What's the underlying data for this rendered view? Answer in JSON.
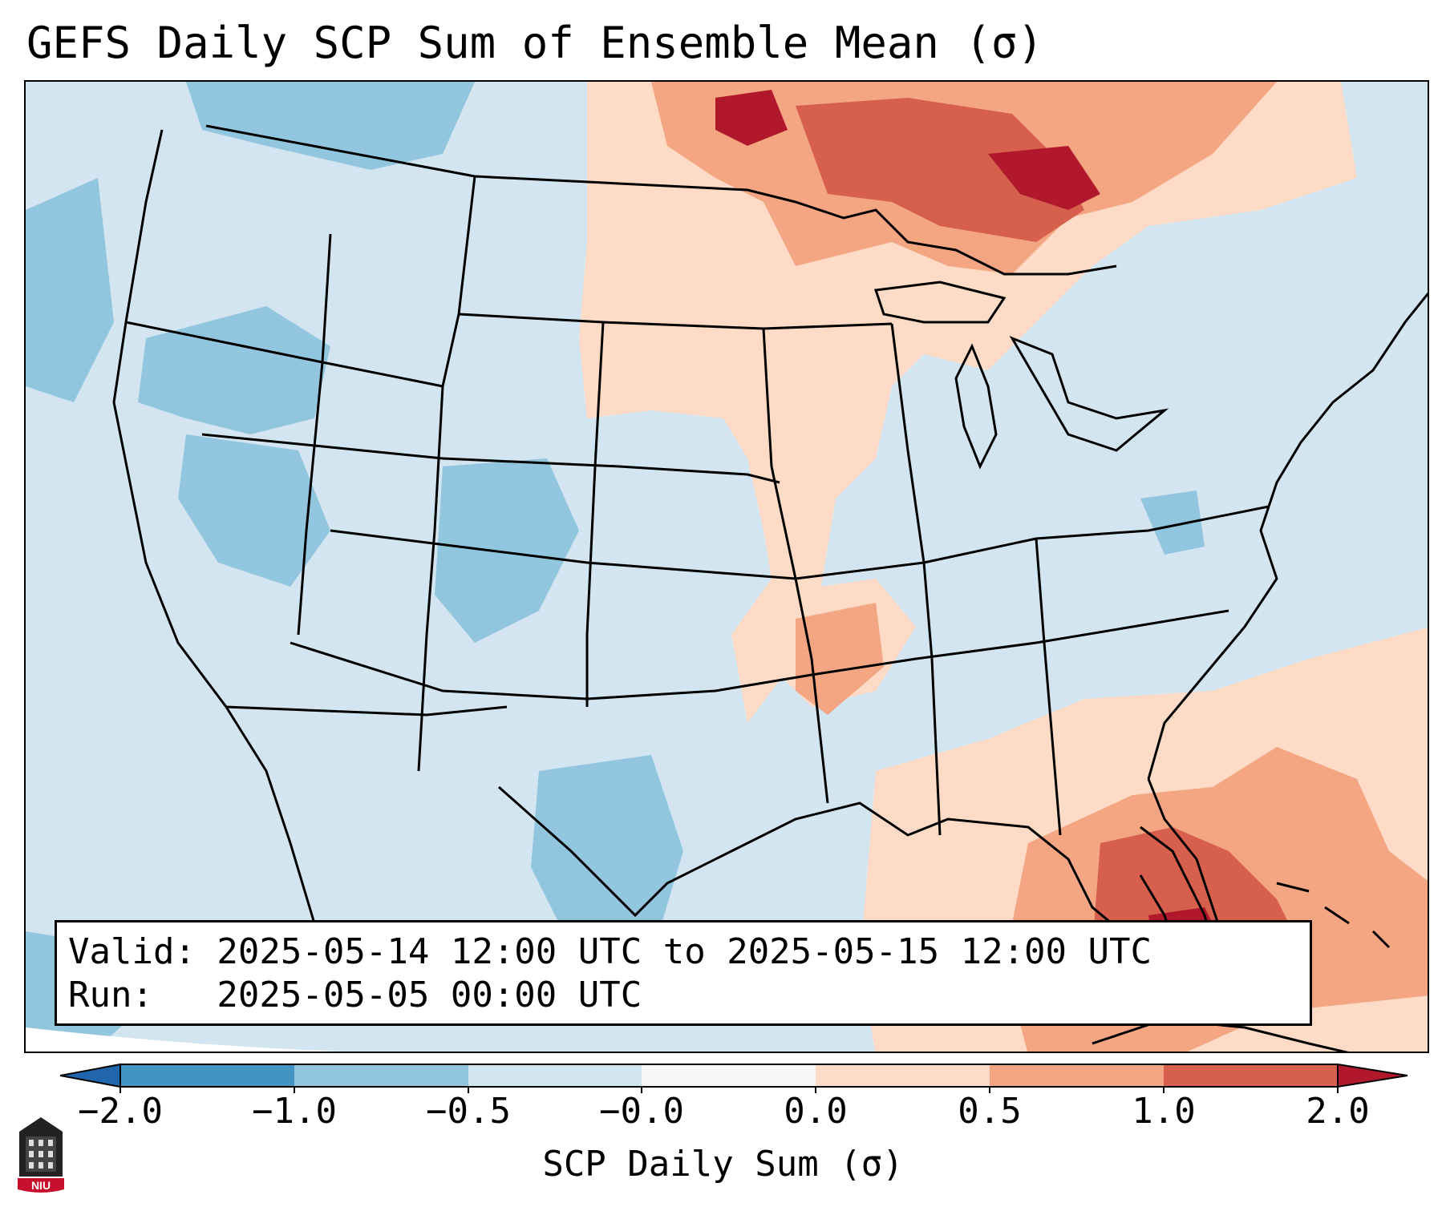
{
  "title": "GEFS Daily SCP Sum of Ensemble Mean (σ)",
  "info": {
    "valid_line": "Valid: 2025-05-14 12:00 UTC to 2025-05-15 12:00 UTC",
    "run_line": "Run:   2025-05-05 00:00 UTC"
  },
  "colorbar": {
    "label": "SCP Daily Sum (σ)",
    "ticks": [
      "−2.0",
      "−1.0",
      "−0.5",
      "−0.0",
      "0.0",
      "0.5",
      "1.0",
      "2.0"
    ],
    "bins": [
      {
        "range": "< -2.0",
        "color": "#2166ac"
      },
      {
        "range": "-2.0 to -1.0",
        "color": "#4393c3"
      },
      {
        "range": "-1.0 to -0.5",
        "color": "#92c5de"
      },
      {
        "range": "-0.5 to -0.0",
        "color": "#d1e5f0"
      },
      {
        "range": "-0.0 to 0.0",
        "color": "#f7f7f7"
      },
      {
        "range": "0.0 to 0.5",
        "color": "#fddbc7"
      },
      {
        "range": "0.5 to 1.0",
        "color": "#f4a582"
      },
      {
        "range": "1.0 to 2.0",
        "color": "#d6604d"
      },
      {
        "range": "> 2.0",
        "color": "#b2182b"
      }
    ]
  },
  "map_regions": [
    {
      "region": "Northern Plains / Upper Midwest",
      "level": "0.0 to 1.0"
    },
    {
      "region": "Upper Great Lakes",
      "level": "1.0 to 2.0"
    },
    {
      "region": "Florida / Bahamas",
      "level": "1.0 to > 2.0"
    },
    {
      "region": "Mid-South (Arkansas)",
      "level": "0.5 to 1.0"
    },
    {
      "region": "Interior West / Texas",
      "level": "-1.0 to -0.5"
    }
  ],
  "logo_text": "NIU"
}
